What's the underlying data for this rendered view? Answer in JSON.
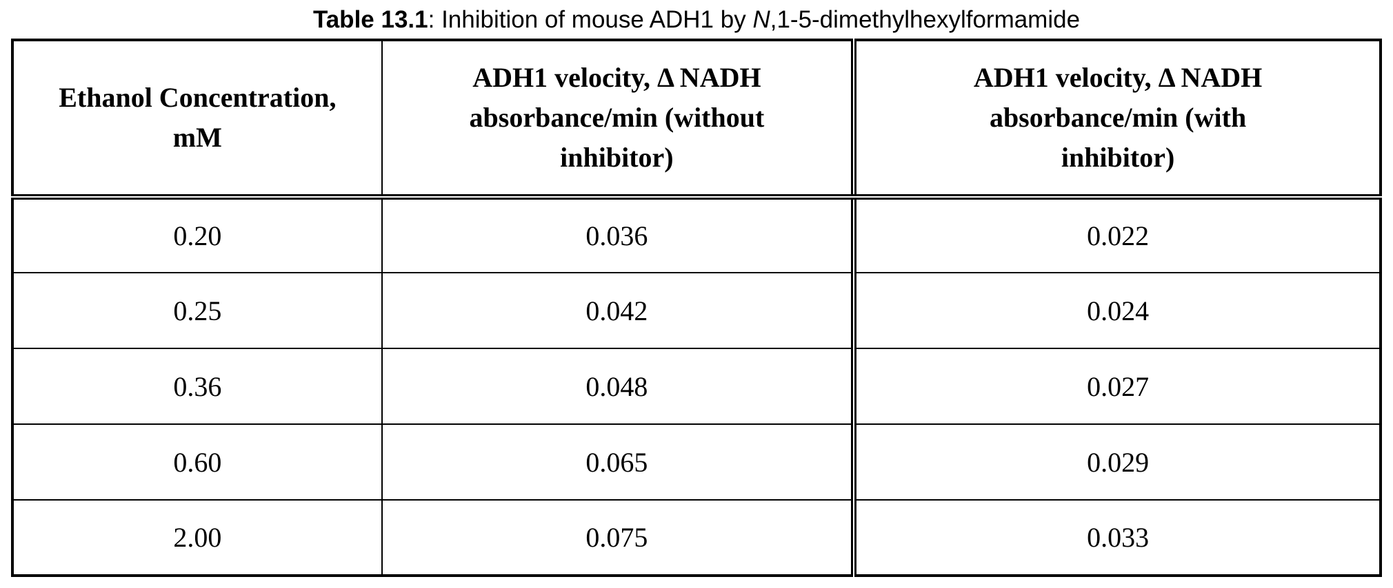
{
  "caption": {
    "bold_label": "Table 13.1",
    "colon": ": ",
    "pre_italic": "Inhibition of mouse ADH1 by ",
    "italic_part": "N",
    "post_italic": ",1-5-dimethylhexylformamide"
  },
  "table": {
    "headers": [
      "Ethanol Concentration, mM",
      "ADH1 velocity, Δ NADH absorbance/min (without inhibitor)",
      "ADH1 velocity, Δ NADH absorbance/min (with inhibitor)"
    ],
    "rows": [
      [
        "0.20",
        "0.036",
        "0.022"
      ],
      [
        "0.25",
        "0.042",
        "0.024"
      ],
      [
        "0.36",
        "0.048",
        "0.027"
      ],
      [
        "0.60",
        "0.065",
        "0.029"
      ],
      [
        "2.00",
        "0.075",
        "0.033"
      ]
    ]
  },
  "chart_data": {
    "type": "table",
    "title": "Table 13.1: Inhibition of mouse ADH1 by N,1-5-dimethylhexylformamide",
    "columns": [
      "Ethanol Concentration, mM",
      "ADH1 velocity, Δ NADH absorbance/min (without inhibitor)",
      "ADH1 velocity, Δ NADH absorbance/min (with inhibitor)"
    ],
    "ethanol_concentration_mM": [
      0.2,
      0.25,
      0.36,
      0.6,
      2.0
    ],
    "velocity_without_inhibitor": [
      0.036,
      0.042,
      0.048,
      0.065,
      0.075
    ],
    "velocity_with_inhibitor": [
      0.022,
      0.024,
      0.027,
      0.029,
      0.033
    ]
  },
  "colors": {
    "border": "#000000",
    "background": "#ffffff",
    "text": "#000000"
  }
}
